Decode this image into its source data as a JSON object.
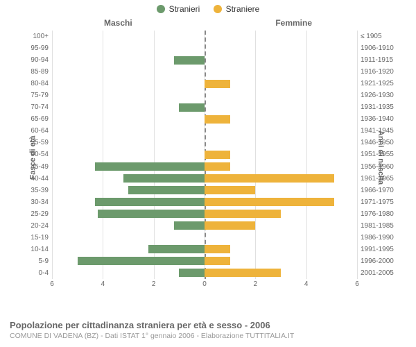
{
  "title": "Popolazione per cittadinanza straniera per età e sesso - 2006",
  "source": "COMUNE DI VADENA (BZ) - Dati ISTAT 1° gennaio 2006 - Elaborazione TUTTITALIA.IT",
  "legend": {
    "series1": {
      "label": "Stranieri",
      "color": "#6c9a6c"
    },
    "series2": {
      "label": "Straniere",
      "color": "#eeb33b"
    }
  },
  "columns": {
    "left": "Maschi",
    "right": "Femmine"
  },
  "axis_labels": {
    "left": "Fasce di età",
    "right": "Anni di nascita"
  },
  "chart": {
    "type": "pyramid-bar",
    "xmax": 6,
    "xticks": [
      6,
      4,
      2,
      0,
      2,
      4,
      6
    ],
    "background_color": "#ffffff",
    "grid_color": "#e0e0e0",
    "center_line_color": "#888888",
    "male_color": "#6c9a6c",
    "female_color": "#eeb33b",
    "rows": [
      {
        "age": "100+",
        "birth": "≤ 1905",
        "m": 0,
        "f": 0
      },
      {
        "age": "95-99",
        "birth": "1906-1910",
        "m": 0,
        "f": 0
      },
      {
        "age": "90-94",
        "birth": "1911-1915",
        "m": 1.2,
        "f": 0
      },
      {
        "age": "85-89",
        "birth": "1916-1920",
        "m": 0,
        "f": 0
      },
      {
        "age": "80-84",
        "birth": "1921-1925",
        "m": 0,
        "f": 1
      },
      {
        "age": "75-79",
        "birth": "1926-1930",
        "m": 0,
        "f": 0
      },
      {
        "age": "70-74",
        "birth": "1931-1935",
        "m": 1,
        "f": 0
      },
      {
        "age": "65-69",
        "birth": "1936-1940",
        "m": 0,
        "f": 1
      },
      {
        "age": "60-64",
        "birth": "1941-1945",
        "m": 0,
        "f": 0
      },
      {
        "age": "55-59",
        "birth": "1946-1950",
        "m": 0,
        "f": 0
      },
      {
        "age": "50-54",
        "birth": "1951-1955",
        "m": 0,
        "f": 1
      },
      {
        "age": "45-49",
        "birth": "1956-1960",
        "m": 4.3,
        "f": 1
      },
      {
        "age": "40-44",
        "birth": "1961-1965",
        "m": 3.2,
        "f": 5.1
      },
      {
        "age": "35-39",
        "birth": "1966-1970",
        "m": 3,
        "f": 2
      },
      {
        "age": "30-34",
        "birth": "1971-1975",
        "m": 4.3,
        "f": 5.1
      },
      {
        "age": "25-29",
        "birth": "1976-1980",
        "m": 4.2,
        "f": 3
      },
      {
        "age": "20-24",
        "birth": "1981-1985",
        "m": 1.2,
        "f": 2
      },
      {
        "age": "15-19",
        "birth": "1986-1990",
        "m": 0,
        "f": 0
      },
      {
        "age": "10-14",
        "birth": "1991-1995",
        "m": 2.2,
        "f": 1
      },
      {
        "age": "5-9",
        "birth": "1996-2000",
        "m": 5,
        "f": 1
      },
      {
        "age": "0-4",
        "birth": "2001-2005",
        "m": 1,
        "f": 3
      }
    ]
  }
}
